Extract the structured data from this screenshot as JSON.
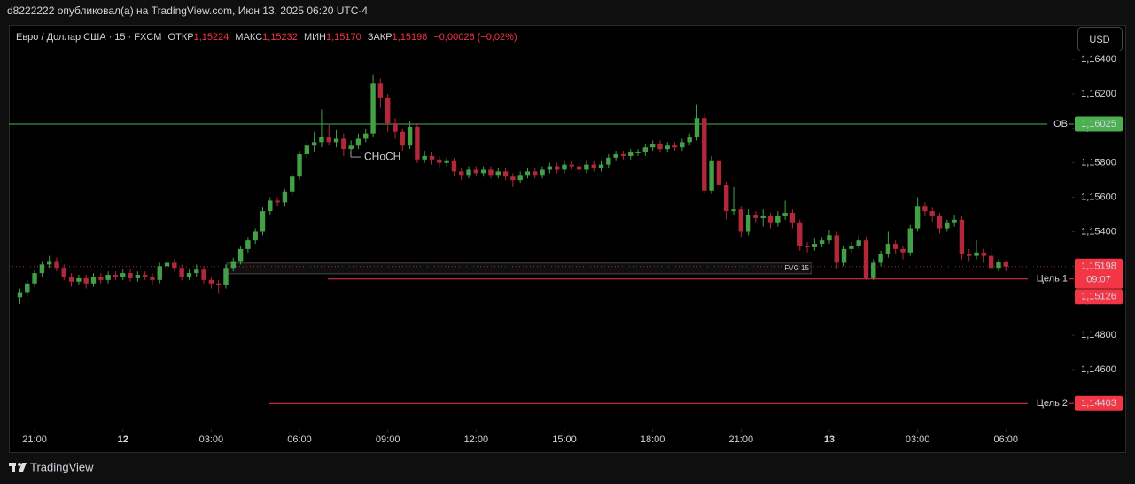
{
  "header": {
    "text": "d8222222 опубликовал(а) на TradingView.com, Июн 13, 2025 06:20 UTC-4"
  },
  "legend": {
    "symbol": "Евро / Доллар США · 15 · FXCM",
    "open_label": "ОТКР",
    "open": "1,15224",
    "high_label": "МАКС",
    "high": "1,15232",
    "low_label": "МИН",
    "low": "1,15170",
    "close_label": "ЗАКР",
    "close": "1,15198",
    "change": "−0,00026 (−0,02%)"
  },
  "currency": "USD",
  "footer": {
    "brand": "TradingView"
  },
  "chart_data": {
    "type": "candlestick",
    "up_color": "#43a047",
    "down_color": "#b2283a",
    "xlim": [
      -1.5,
      143
    ],
    "ylim": [
      1.14255,
      1.16601
    ],
    "xticks": [
      {
        "value": 2,
        "label": "21:00"
      },
      {
        "value": 14,
        "label": "12"
      },
      {
        "value": 26,
        "label": "03:00"
      },
      {
        "value": 38,
        "label": "06:00"
      },
      {
        "value": 50,
        "label": "09:00"
      },
      {
        "value": 62,
        "label": "12:00"
      },
      {
        "value": 74,
        "label": "15:00"
      },
      {
        "value": 86,
        "label": "18:00"
      },
      {
        "value": 98,
        "label": "21:00"
      },
      {
        "value": 110,
        "label": "13"
      },
      {
        "value": 122,
        "label": "03:00"
      },
      {
        "value": 134,
        "label": "06:00"
      }
    ],
    "yticks": [
      {
        "value": 1.164,
        "label": "1,16400"
      },
      {
        "value": 1.162,
        "label": "1,16200"
      },
      {
        "value": 1.16,
        "label": "1,16000"
      },
      {
        "value": 1.158,
        "label": "1,15800"
      },
      {
        "value": 1.156,
        "label": "1,15600"
      },
      {
        "value": 1.154,
        "label": "1,15400"
      },
      {
        "value": 1.152,
        "label": "1,15200"
      },
      {
        "value": 1.15,
        "label": "1,15000"
      },
      {
        "value": 1.148,
        "label": "1,14800"
      },
      {
        "value": 1.146,
        "label": "1,14600"
      }
    ],
    "candles": [
      [
        1.1502,
        1.1507,
        1.1498,
        1.1505
      ],
      [
        1.1505,
        1.1512,
        1.1503,
        1.151
      ],
      [
        1.151,
        1.1518,
        1.1508,
        1.1516
      ],
      [
        1.1516,
        1.1523,
        1.1514,
        1.1521
      ],
      [
        1.1521,
        1.1526,
        1.1519,
        1.1523
      ],
      [
        1.1523,
        1.1525,
        1.1517,
        1.1519
      ],
      [
        1.1519,
        1.1521,
        1.1512,
        1.1514
      ],
      [
        1.1514,
        1.1516,
        1.1508,
        1.1511
      ],
      [
        1.1511,
        1.1515,
        1.1509,
        1.1513
      ],
      [
        1.1513,
        1.1515,
        1.1507,
        1.151
      ],
      [
        1.151,
        1.1516,
        1.1508,
        1.1514
      ],
      [
        1.1514,
        1.1516,
        1.151,
        1.1512
      ],
      [
        1.1512,
        1.1517,
        1.151,
        1.1515
      ],
      [
        1.1515,
        1.1517,
        1.1512,
        1.1514
      ],
      [
        1.1514,
        1.1518,
        1.1512,
        1.1516
      ],
      [
        1.1516,
        1.1518,
        1.1511,
        1.1513
      ],
      [
        1.1513,
        1.1517,
        1.1511,
        1.1515
      ],
      [
        1.1515,
        1.1517,
        1.1512,
        1.1514
      ],
      [
        1.1514,
        1.1516,
        1.1509,
        1.1512
      ],
      [
        1.1512,
        1.1522,
        1.151,
        1.152
      ],
      [
        1.152,
        1.1527,
        1.1518,
        1.1522
      ],
      [
        1.1522,
        1.1524,
        1.1517,
        1.1519
      ],
      [
        1.1519,
        1.1521,
        1.1512,
        1.1514
      ],
      [
        1.1514,
        1.1518,
        1.1512,
        1.1516
      ],
      [
        1.1516,
        1.1521,
        1.1514,
        1.1518
      ],
      [
        1.1518,
        1.152,
        1.151,
        1.1512
      ],
      [
        1.1512,
        1.1514,
        1.1507,
        1.151
      ],
      [
        1.151,
        1.1512,
        1.1504,
        1.1509
      ],
      [
        1.1509,
        1.1521,
        1.1507,
        1.1519
      ],
      [
        1.1519,
        1.1525,
        1.1517,
        1.1523
      ],
      [
        1.1523,
        1.1532,
        1.1521,
        1.153
      ],
      [
        1.153,
        1.1537,
        1.1528,
        1.1535
      ],
      [
        1.1535,
        1.1542,
        1.1533,
        1.154
      ],
      [
        1.154,
        1.1554,
        1.1538,
        1.1552
      ],
      [
        1.1552,
        1.156,
        1.155,
        1.1558
      ],
      [
        1.1558,
        1.156,
        1.1555,
        1.1557
      ],
      [
        1.1557,
        1.1565,
        1.1555,
        1.1563
      ],
      [
        1.1563,
        1.1574,
        1.1561,
        1.1572
      ],
      [
        1.1572,
        1.1587,
        1.157,
        1.1585
      ],
      [
        1.1585,
        1.1593,
        1.1583,
        1.159
      ],
      [
        1.159,
        1.1598,
        1.1586,
        1.1592
      ],
      [
        1.1592,
        1.1611,
        1.1589,
        1.1595
      ],
      [
        1.1595,
        1.1602,
        1.159,
        1.1592
      ],
      [
        1.1592,
        1.1599,
        1.1589,
        1.1594
      ],
      [
        1.1594,
        1.1597,
        1.1584,
        1.1588
      ],
      [
        1.1588,
        1.1593,
        1.1586,
        1.159
      ],
      [
        1.159,
        1.1597,
        1.1588,
        1.1594
      ],
      [
        1.1594,
        1.16,
        1.1592,
        1.1597
      ],
      [
        1.1597,
        1.1631,
        1.1595,
        1.1626
      ],
      [
        1.1626,
        1.1629,
        1.1612,
        1.1618
      ],
      [
        1.1618,
        1.162,
        1.1598,
        1.1603
      ],
      [
        1.1603,
        1.1606,
        1.1594,
        1.1598
      ],
      [
        1.1598,
        1.16,
        1.1587,
        1.159
      ],
      [
        1.159,
        1.1604,
        1.1588,
        1.1601
      ],
      [
        1.1601,
        1.1603,
        1.158,
        1.1582
      ],
      [
        1.1582,
        1.1587,
        1.158,
        1.1584
      ],
      [
        1.1584,
        1.1586,
        1.1579,
        1.1582
      ],
      [
        1.1582,
        1.1584,
        1.1577,
        1.158
      ],
      [
        1.158,
        1.1583,
        1.1578,
        1.1581
      ],
      [
        1.1581,
        1.1583,
        1.1572,
        1.1575
      ],
      [
        1.1575,
        1.1577,
        1.157,
        1.1573
      ],
      [
        1.1573,
        1.1578,
        1.1571,
        1.1576
      ],
      [
        1.1576,
        1.1578,
        1.1572,
        1.1574
      ],
      [
        1.1574,
        1.1578,
        1.1572,
        1.1576
      ],
      [
        1.1576,
        1.1578,
        1.1571,
        1.1573
      ],
      [
        1.1573,
        1.1577,
        1.1571,
        1.1575
      ],
      [
        1.1575,
        1.1577,
        1.157,
        1.1572
      ],
      [
        1.1572,
        1.1574,
        1.1566,
        1.157
      ],
      [
        1.157,
        1.1575,
        1.1568,
        1.1573
      ],
      [
        1.1573,
        1.1577,
        1.1571,
        1.1575
      ],
      [
        1.1575,
        1.1577,
        1.1571,
        1.1573
      ],
      [
        1.1573,
        1.1578,
        1.1571,
        1.1576
      ],
      [
        1.1576,
        1.158,
        1.1574,
        1.1578
      ],
      [
        1.1578,
        1.158,
        1.1574,
        1.1576
      ],
      [
        1.1576,
        1.1581,
        1.1574,
        1.1579
      ],
      [
        1.1579,
        1.1581,
        1.1576,
        1.1578
      ],
      [
        1.1578,
        1.158,
        1.1574,
        1.1576
      ],
      [
        1.1576,
        1.1581,
        1.1574,
        1.1579
      ],
      [
        1.1579,
        1.1581,
        1.1575,
        1.1577
      ],
      [
        1.1577,
        1.1581,
        1.1575,
        1.1579
      ],
      [
        1.1579,
        1.1585,
        1.1577,
        1.1583
      ],
      [
        1.1583,
        1.1587,
        1.1581,
        1.1585
      ],
      [
        1.1585,
        1.1587,
        1.1582,
        1.1584
      ],
      [
        1.1584,
        1.1588,
        1.1582,
        1.1586
      ],
      [
        1.1586,
        1.1588,
        1.1584,
        1.1586
      ],
      [
        1.1586,
        1.1591,
        1.1584,
        1.1589
      ],
      [
        1.1589,
        1.1593,
        1.1587,
        1.1591
      ],
      [
        1.1591,
        1.1593,
        1.1586,
        1.1588
      ],
      [
        1.1588,
        1.1592,
        1.1586,
        1.159
      ],
      [
        1.159,
        1.1592,
        1.1587,
        1.1589
      ],
      [
        1.1589,
        1.1594,
        1.1587,
        1.1592
      ],
      [
        1.1592,
        1.1597,
        1.159,
        1.1595
      ],
      [
        1.1595,
        1.1614,
        1.1593,
        1.1606
      ],
      [
        1.1606,
        1.1609,
        1.1562,
        1.1564
      ],
      [
        1.1564,
        1.1584,
        1.1562,
        1.1581
      ],
      [
        1.1581,
        1.1583,
        1.1562,
        1.1567
      ],
      [
        1.1567,
        1.1569,
        1.1547,
        1.1552
      ],
      [
        1.1552,
        1.1566,
        1.155,
        1.1553
      ],
      [
        1.1553,
        1.1555,
        1.1537,
        1.154
      ],
      [
        1.154,
        1.1553,
        1.1538,
        1.155
      ],
      [
        1.155,
        1.1552,
        1.1545,
        1.1548
      ],
      [
        1.1548,
        1.1553,
        1.1543,
        1.1549
      ],
      [
        1.1549,
        1.1551,
        1.1542,
        1.1545
      ],
      [
        1.1545,
        1.1552,
        1.1543,
        1.1549
      ],
      [
        1.1549,
        1.1558,
        1.1547,
        1.1551
      ],
      [
        1.1551,
        1.1553,
        1.1542,
        1.1545
      ],
      [
        1.1545,
        1.1547,
        1.1529,
        1.1532
      ],
      [
        1.1532,
        1.1534,
        1.1528,
        1.1531
      ],
      [
        1.1531,
        1.1536,
        1.1529,
        1.1533
      ],
      [
        1.1533,
        1.1537,
        1.1531,
        1.1535
      ],
      [
        1.1535,
        1.1541,
        1.1533,
        1.1538
      ],
      [
        1.1538,
        1.154,
        1.1518,
        1.1522
      ],
      [
        1.1522,
        1.1532,
        1.152,
        1.153
      ],
      [
        1.153,
        1.1534,
        1.1528,
        1.1532
      ],
      [
        1.1532,
        1.1538,
        1.153,
        1.1535
      ],
      [
        1.1535,
        1.1537,
        1.1512,
        1.1513
      ],
      [
        1.1513,
        1.1524,
        1.1512,
        1.1522
      ],
      [
        1.1522,
        1.1529,
        1.152,
        1.1527
      ],
      [
        1.1527,
        1.154,
        1.1525,
        1.1533
      ],
      [
        1.1533,
        1.1535,
        1.1527,
        1.153
      ],
      [
        1.153,
        1.1532,
        1.1524,
        1.1528
      ],
      [
        1.1528,
        1.1544,
        1.1526,
        1.1542
      ],
      [
        1.1542,
        1.156,
        1.154,
        1.1555
      ],
      [
        1.1555,
        1.1557,
        1.1549,
        1.1552
      ],
      [
        1.1552,
        1.1554,
        1.1546,
        1.1549
      ],
      [
        1.1549,
        1.1551,
        1.1539,
        1.1542
      ],
      [
        1.1542,
        1.1547,
        1.154,
        1.1545
      ],
      [
        1.1545,
        1.155,
        1.1543,
        1.1547
      ],
      [
        1.1547,
        1.1549,
        1.1524,
        1.1527
      ],
      [
        1.1527,
        1.153,
        1.1523,
        1.1526
      ],
      [
        1.1526,
        1.1535,
        1.1524,
        1.1528
      ],
      [
        1.1528,
        1.153,
        1.1522,
        1.1526
      ],
      [
        1.1526,
        1.1531,
        1.1517,
        1.1519
      ],
      [
        1.1519,
        1.1524,
        1.1517,
        1.15224
      ],
      [
        1.15224,
        1.15232,
        1.1517,
        1.15198
      ]
    ],
    "levels": [
      {
        "name": "OB",
        "value": 1.16025,
        "value_label": "1,16025",
        "color": "#4caf50"
      },
      {
        "name": "Цель 1",
        "value": 1.15126,
        "value_label": "1,15126",
        "color": "#f23645"
      },
      {
        "name": "Цель 2",
        "value": 1.14403,
        "value_label": "1,14403",
        "color": "#f23645"
      }
    ],
    "last_price": {
      "value": 1.15198,
      "label": "1,15198",
      "countdown": "09:07",
      "color": "#f23645"
    },
    "fvg": {
      "label": "FVG 15",
      "top": 1.15218,
      "bottom": 1.15156,
      "color": "#f23645"
    },
    "choch": {
      "label": "CHoCH",
      "value": 1.15834
    }
  }
}
